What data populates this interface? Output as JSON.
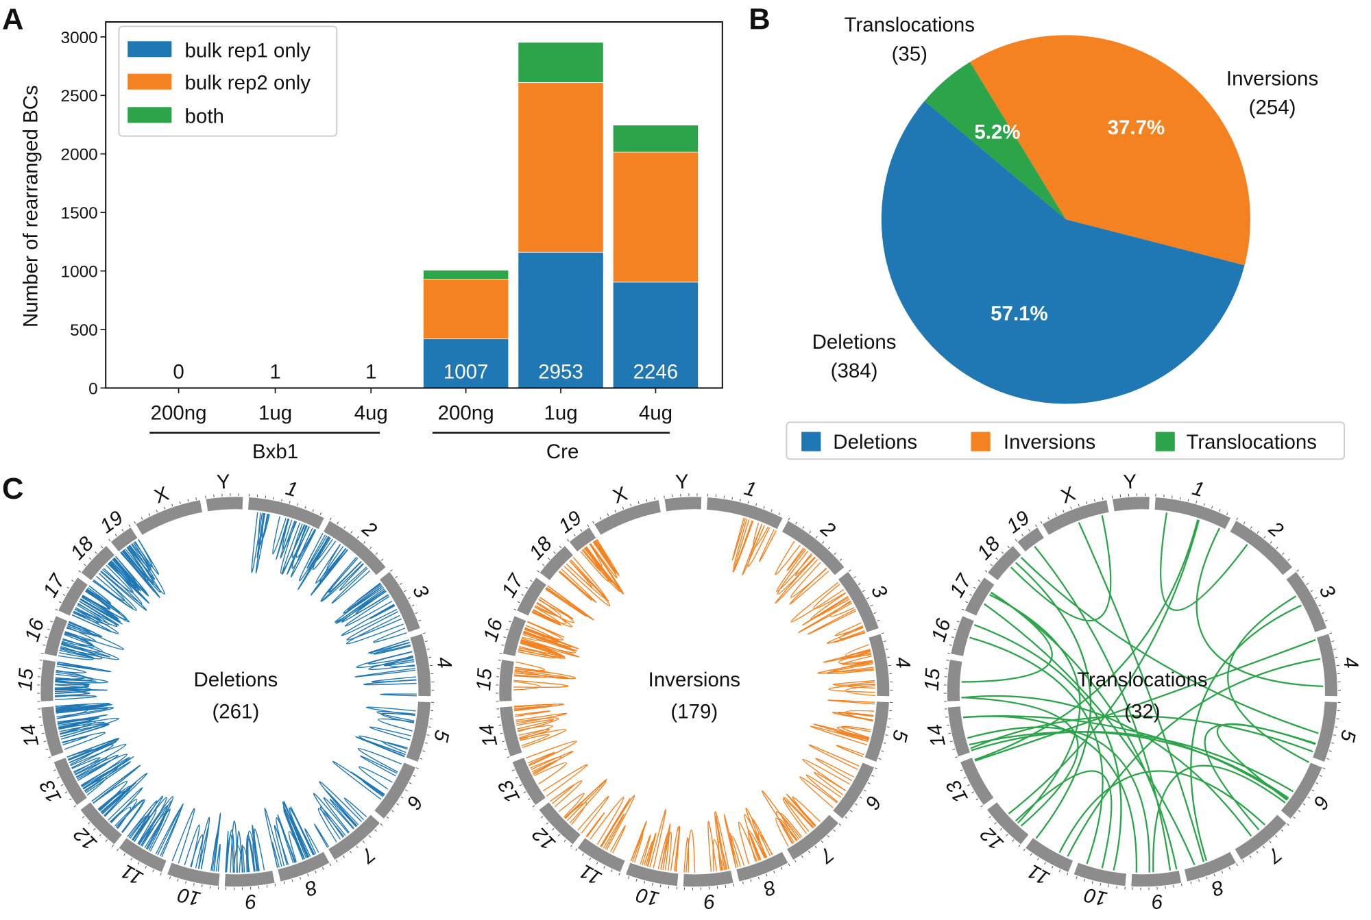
{
  "panels": {
    "a": "A",
    "b": "B",
    "c": "C"
  },
  "colors": {
    "blue": "#1f77b4",
    "orange": "#f58220",
    "green": "#2ca44a",
    "ring": "#8c8c8c"
  },
  "chart_data": [
    {
      "type": "bar",
      "stacked": true,
      "ylabel": "Number of rearranged BCs",
      "ylim": [
        0,
        3150
      ],
      "yticks": [
        "0",
        "500",
        "1000",
        "1500",
        "2000",
        "2500",
        "3000"
      ],
      "categories": [
        "200ng",
        "1ug",
        "4ug",
        "200ng",
        "1ug",
        "4ug"
      ],
      "groups": [
        {
          "name": "Bxb1",
          "range": [
            0,
            2
          ]
        },
        {
          "name": "Cre",
          "range": [
            3,
            5
          ]
        }
      ],
      "series": [
        {
          "name": "bulk rep1 only",
          "values": [
            0,
            0,
            0,
            420,
            1160,
            905
          ]
        },
        {
          "name": "bulk rep2 only",
          "values": [
            0,
            1,
            1,
            510,
            1450,
            1110
          ]
        },
        {
          "name": "both",
          "values": [
            0,
            0,
            0,
            77,
            343,
            231
          ]
        }
      ],
      "totals": [
        "0",
        "1",
        "1",
        "1007",
        "2953",
        "2246"
      ],
      "legend": "top-left"
    },
    {
      "type": "pie",
      "slices": [
        {
          "name": "Deletions",
          "count": "(384)",
          "value": 57.1,
          "pct_label": "57.1%"
        },
        {
          "name": "Inversions",
          "count": "(254)",
          "value": 37.7,
          "pct_label": "37.7%"
        },
        {
          "name": "Translocations",
          "count": "(35)",
          "value": 5.2,
          "pct_label": "5.2%"
        }
      ],
      "legend": "bottom"
    },
    {
      "type": "chord",
      "chromosomes": [
        "1",
        "2",
        "3",
        "4",
        "5",
        "6",
        "7",
        "8",
        "9",
        "10",
        "11",
        "12",
        "13",
        "14",
        "15",
        "16",
        "17",
        "18",
        "19",
        "X",
        "Y"
      ],
      "chrom_sizes_mb": [
        195,
        182,
        160,
        157,
        152,
        150,
        145,
        130,
        125,
        131,
        122,
        120,
        121,
        125,
        104,
        98,
        95,
        91,
        61,
        171,
        92
      ],
      "plots": [
        {
          "title": "Deletions",
          "count_label": "(261)",
          "links": 261,
          "kind": "intra-deletion"
        },
        {
          "title": "Inversions",
          "count_label": "(179)",
          "links": 179,
          "kind": "intra-inversion"
        },
        {
          "title": "Translocations",
          "count_label": "(32)",
          "links": 32,
          "kind": "inter"
        }
      ]
    }
  ]
}
